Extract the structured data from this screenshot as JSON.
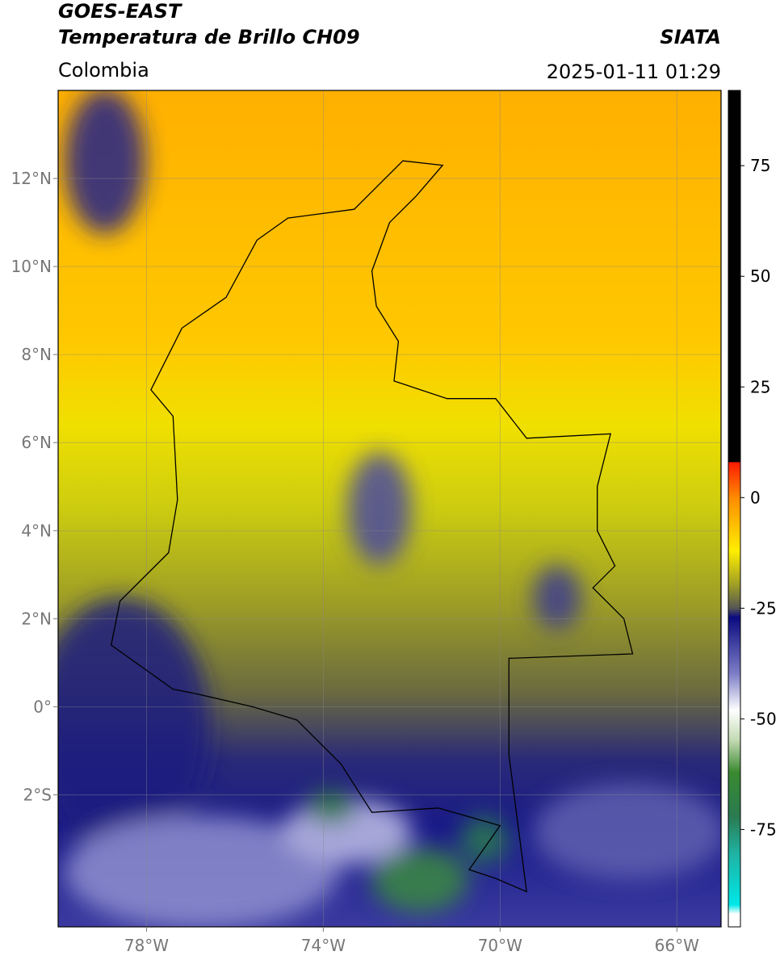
{
  "header": {
    "title": "GOES-EAST",
    "subtitle": "Temperatura de Brillo CH09",
    "source": "SIATA",
    "region": "Colombia",
    "datetime": "2025-01-11 01:29"
  },
  "map": {
    "xlim": [
      -80,
      -65
    ],
    "ylim": [
      -5,
      14
    ],
    "grid": true,
    "xticks": [
      {
        "value": -78,
        "label": "78°W"
      },
      {
        "value": -74,
        "label": "74°W"
      },
      {
        "value": -70,
        "label": "70°W"
      },
      {
        "value": -66,
        "label": "66°W"
      }
    ],
    "yticks": [
      {
        "value": 12,
        "label": "12°N"
      },
      {
        "value": 10,
        "label": "10°N"
      },
      {
        "value": 8,
        "label": "8°N"
      },
      {
        "value": 6,
        "label": "6°N"
      },
      {
        "value": 4,
        "label": "4°N"
      },
      {
        "value": 2,
        "label": "2°N"
      },
      {
        "value": 0,
        "label": "0°"
      },
      {
        "value": -2,
        "label": "2°S"
      }
    ]
  },
  "colorbar": {
    "lim": [
      -97,
      92
    ],
    "ticks": [
      75,
      50,
      25,
      0,
      -25,
      -50,
      -75
    ],
    "colormap": [
      [
        92,
        "#000000"
      ],
      [
        8,
        "#000000"
      ],
      [
        8,
        "#ff1a00"
      ],
      [
        0,
        "#ff8c00"
      ],
      [
        -12,
        "#ffee00"
      ],
      [
        -20,
        "#9a9a28"
      ],
      [
        -25,
        "#555555"
      ],
      [
        -27,
        "#0a0a80"
      ],
      [
        -40,
        "#8080c8"
      ],
      [
        -48,
        "#ffffff"
      ],
      [
        -55,
        "#c0d8b0"
      ],
      [
        -62,
        "#3a8a30"
      ],
      [
        -72,
        "#2a7a50"
      ],
      [
        -80,
        "#20b0a0"
      ],
      [
        -92,
        "#00e8e8"
      ],
      [
        -94,
        "#ffffff"
      ],
      [
        -97,
        "#ffffff"
      ]
    ]
  }
}
